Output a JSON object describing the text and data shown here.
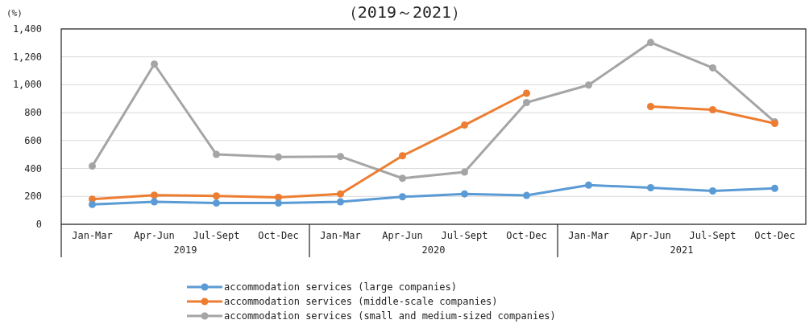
{
  "chart_data": {
    "type": "line",
    "title": "（2019～2021）",
    "ylabel": "(%)",
    "categories": [
      "Jan-Mar",
      "Apr-Jun",
      "Jul-Sept",
      "Oct-Dec",
      "Jan-Mar",
      "Apr-Jun",
      "Jul-Sept",
      "Oct-Dec",
      "Jan-Mar",
      "Apr-Jun",
      "Jul-Sept",
      "Oct-Dec"
    ],
    "annotations": [
      "2019",
      "2020",
      "2021"
    ],
    "series": [
      {
        "name": "accommodation services (large companies)",
        "color": "#5b9bd5",
        "values": [
          142,
          161,
          152,
          152,
          161,
          197,
          218,
          207,
          281,
          262,
          239,
          258
        ]
      },
      {
        "name": "accommodation services (middle-scale companies)",
        "color": "#ed7d31",
        "values": [
          180,
          209,
          203,
          193,
          218,
          491,
          711,
          939,
          null,
          844,
          821,
          723
        ]
      },
      {
        "name": "accommodation services (small and medium-sized companies)",
        "color": "#a5a5a5",
        "values": [
          417,
          1148,
          501,
          482,
          486,
          330,
          374,
          873,
          998,
          1303,
          1121,
          734
        ]
      }
    ],
    "ylim": [
      0,
      1400
    ],
    "yticks": [
      0,
      200,
      400,
      600,
      800,
      {
        "value": 1000,
        "label": "1,000"
      },
      {
        "value": 1200,
        "label": "1,200"
      },
      {
        "value": 1400,
        "label": "1,400"
      }
    ],
    "grid": "y",
    "legend": "bottom",
    "marker": "circle",
    "line_style": "solid"
  }
}
